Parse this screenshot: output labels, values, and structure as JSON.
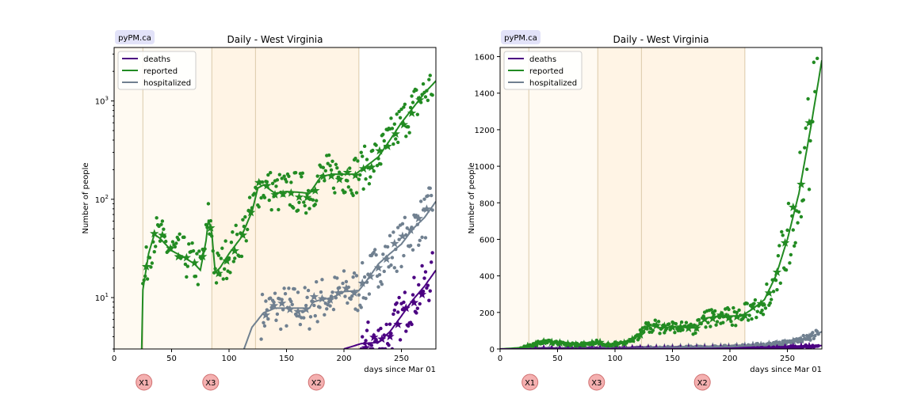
{
  "badge": "pyPM.ca",
  "markers": [
    {
      "label": "X1",
      "day": 26
    },
    {
      "label": "X3",
      "day": 84
    },
    {
      "label": "X2",
      "day": 176
    }
  ],
  "legend": [
    "deaths",
    "reported",
    "hospitalized"
  ],
  "colors": {
    "deaths": "#4b0082",
    "reported": "#228b22",
    "hospitalized": "#708090",
    "shade_light": "#fffaf2",
    "shade_mid": "#fff4e5",
    "vline": "#dcc9a9",
    "badge_bg": "#e2e2f8",
    "marker_fill": "#f4b0b0",
    "marker_stroke": "#d07070"
  },
  "chart_data": [
    {
      "type": "line",
      "title": "Daily - West Virginia",
      "xlabel": "days since Mar 01",
      "ylabel": "Number of people",
      "yscale": "log",
      "xlim": [
        0,
        280
      ],
      "ylim": [
        3,
        3500
      ],
      "xticks": [
        0,
        50,
        100,
        150,
        200,
        250
      ],
      "yticks": [
        10,
        100,
        1000
      ],
      "ytick_labels": [
        "10^1",
        "10^2",
        "10^3"
      ],
      "shaded_periods": [
        [
          0,
          25,
          "light"
        ],
        [
          25,
          85,
          "light"
        ],
        [
          85,
          123,
          "mid"
        ],
        [
          123,
          213,
          "mid"
        ]
      ],
      "legend_position": "top-left",
      "series": [
        {
          "name": "deaths",
          "x": [
            200,
            215,
            230,
            240,
            250,
            260,
            270,
            280
          ],
          "y": [
            3,
            3.4,
            3.5,
            4.5,
            6.5,
            9.5,
            13,
            19
          ]
        },
        {
          "name": "reported",
          "x": [
            24,
            25,
            30,
            35,
            40,
            50,
            60,
            70,
            75,
            80,
            82,
            85,
            88,
            92,
            100,
            110,
            120,
            125,
            130,
            140,
            150,
            160,
            170,
            180,
            190,
            200,
            210,
            220,
            230,
            240,
            250,
            260,
            270,
            280
          ],
          "y": [
            3,
            12,
            28,
            44,
            40,
            30,
            26,
            22,
            19,
            38,
            62,
            45,
            18,
            20,
            28,
            40,
            75,
            130,
            140,
            115,
            120,
            118,
            115,
            170,
            180,
            180,
            180,
            220,
            270,
            400,
            600,
            850,
            1200,
            1600
          ]
        },
        {
          "name": "hospitalized",
          "x": [
            113,
            120,
            130,
            140,
            150,
            170,
            173,
            180,
            190,
            200,
            213,
            220,
            230,
            240,
            250,
            260,
            270,
            280
          ],
          "y": [
            3,
            5,
            7,
            7.8,
            7.8,
            7.8,
            9,
            9.5,
            10,
            11.5,
            11.8,
            15,
            22,
            28,
            35,
            50,
            65,
            95
          ]
        }
      ]
    },
    {
      "type": "line",
      "title": "Daily - West Virginia",
      "xlabel": "days since Mar 01",
      "ylabel": "Number of people",
      "yscale": "linear",
      "xlim": [
        0,
        280
      ],
      "ylim": [
        0,
        1650
      ],
      "xticks": [
        0,
        50,
        100,
        150,
        200,
        250
      ],
      "yticks": [
        0,
        200,
        400,
        600,
        800,
        1000,
        1200,
        1400,
        1600
      ],
      "shaded_periods": [
        [
          0,
          25,
          "light"
        ],
        [
          25,
          85,
          "light"
        ],
        [
          85,
          123,
          "mid"
        ],
        [
          123,
          213,
          "mid"
        ]
      ],
      "legend_position": "top-left",
      "series": [
        {
          "name": "deaths",
          "x": [
            0,
            150,
            200,
            240,
            260,
            280
          ],
          "y": [
            0,
            1,
            3,
            6,
            11,
            19
          ]
        },
        {
          "name": "reported",
          "x": [
            0,
            20,
            30,
            40,
            50,
            60,
            70,
            80,
            85,
            90,
            100,
            110,
            120,
            130,
            140,
            150,
            160,
            170,
            180,
            190,
            200,
            210,
            220,
            230,
            240,
            250,
            260,
            270,
            280
          ],
          "y": [
            0,
            8,
            25,
            40,
            32,
            26,
            22,
            30,
            45,
            20,
            25,
            35,
            70,
            130,
            115,
            120,
            118,
            115,
            170,
            180,
            180,
            180,
            220,
            270,
            400,
            600,
            850,
            1200,
            1580
          ]
        },
        {
          "name": "hospitalized",
          "x": [
            0,
            110,
            150,
            200,
            230,
            250,
            260,
            270,
            280
          ],
          "y": [
            0,
            3,
            8,
            12,
            22,
            35,
            50,
            65,
            95
          ]
        }
      ]
    }
  ]
}
